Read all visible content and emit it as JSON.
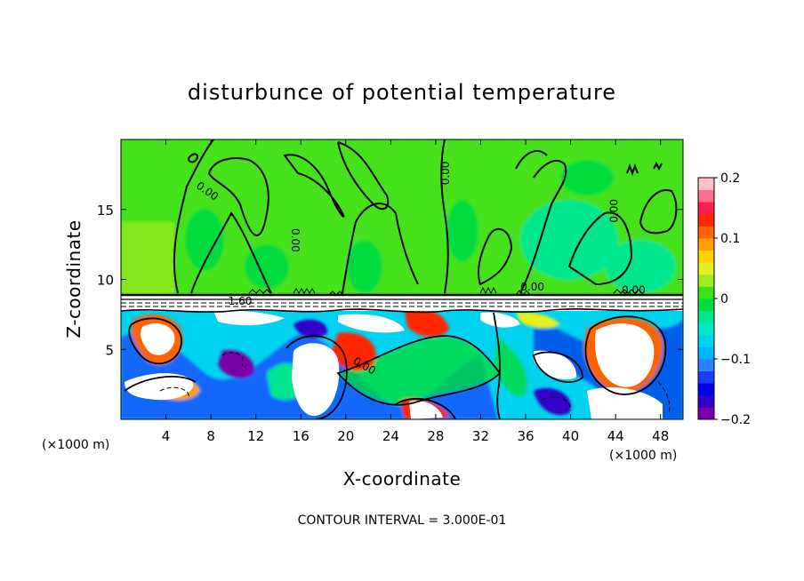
{
  "chart_data": {
    "type": "heatmap",
    "title": "disturbunce of potential temperature",
    "xlabel": "X-coordinate",
    "ylabel": "Z-coordinate",
    "x_unit_label": "(×1000 m)",
    "y_unit_label": "(×1000 m)",
    "xlim": [
      0,
      50
    ],
    "ylim": [
      0,
      20
    ],
    "x_ticks": [
      4,
      8,
      12,
      16,
      20,
      24,
      28,
      32,
      36,
      40,
      44,
      48
    ],
    "y_ticks": [
      5,
      10,
      15
    ],
    "colorbar": {
      "range": [
        -0.2,
        0.2
      ],
      "ticks": [
        0.2,
        0.1,
        0,
        -0.1,
        -0.2
      ],
      "tick_labels": [
        "0.2",
        "0.1",
        "0",
        "−0.1",
        "−0.2"
      ],
      "colors": [
        "#7a00a8",
        "#3200c8",
        "#0000e6",
        "#1e3cff",
        "#2a82ff",
        "#00b4ff",
        "#00d2f0",
        "#00e6c8",
        "#00e68c",
        "#00dc3c",
        "#3ce11e",
        "#a0eb1e",
        "#e6f01e",
        "#ffd200",
        "#ffa000",
        "#ff6400",
        "#ff2800",
        "#ff1e50",
        "#ff6e8c",
        "#ffbec8"
      ]
    },
    "background_value": 0.02,
    "contour_interval_text": "CONTOUR INTERVAL = 3.000E-01",
    "contour_labels": [
      {
        "text": "0.00",
        "x": 7.5,
        "z": 16.1,
        "rotate": 35
      },
      {
        "text": "0.00",
        "x": 15.2,
        "z": 12.8,
        "rotate": 90
      },
      {
        "text": "0.00",
        "x": 29.2,
        "z": 17.6,
        "rotate": -90
      },
      {
        "text": "0.00",
        "x": 44.2,
        "z": 14.9,
        "rotate": -90
      },
      {
        "text": "0.00",
        "x": 36.6,
        "z": 9.2,
        "rotate": 0
      },
      {
        "text": "0.00",
        "x": 45.6,
        "z": 9.0,
        "rotate": 0
      },
      {
        "text": "1.60",
        "x": 10.6,
        "z": 8.2,
        "rotate": 0
      },
      {
        "text": "0.00",
        "x": 21.5,
        "z": 3.6,
        "rotate": 30
      }
    ]
  }
}
